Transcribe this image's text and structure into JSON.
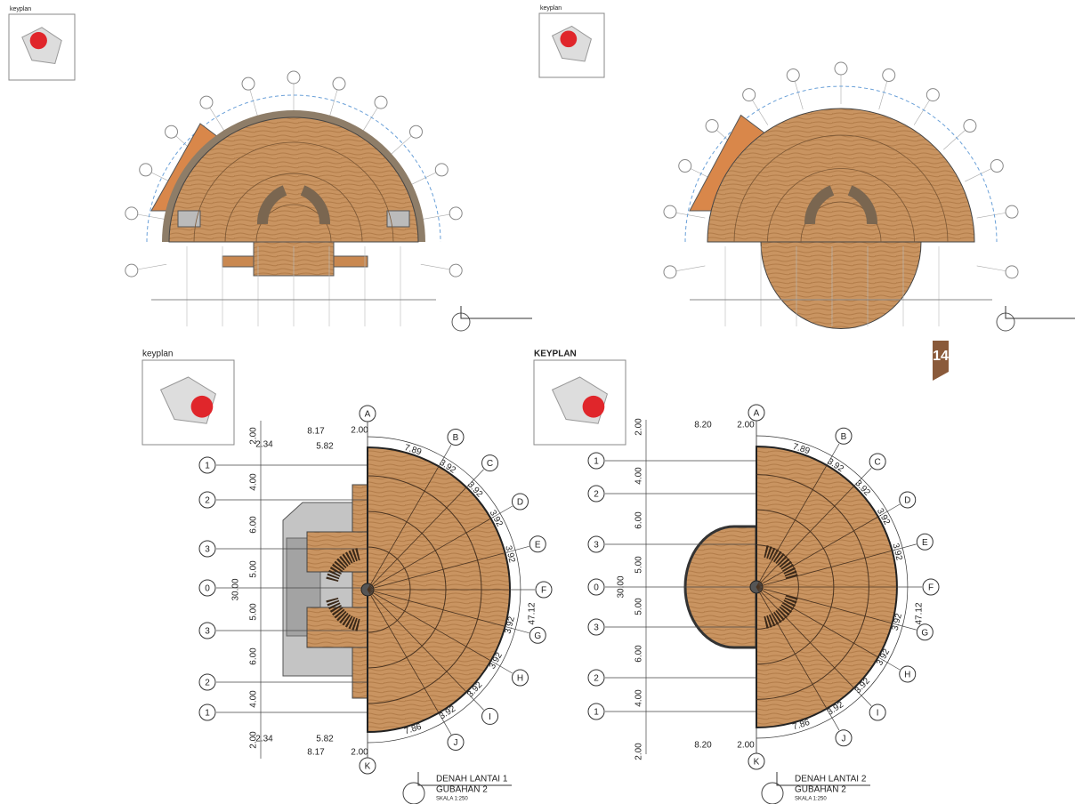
{
  "page_number": "14",
  "panels": [
    {
      "keyplan_label": "keyplan"
    },
    {
      "keyplan_label": "keyplan"
    },
    {
      "keyplan_label": "keyplan",
      "title": "DENAH LANTAI 1",
      "subtitle": "GUBAHAN 2",
      "scale": "SKALA 1:250",
      "columns": [
        "A",
        "B",
        "C",
        "D",
        "E",
        "F",
        "G",
        "H",
        "I",
        "J",
        "K"
      ],
      "rows": [
        "1",
        "2",
        "3",
        "0",
        "3",
        "2",
        "1"
      ],
      "dims": {
        "top": [
          "8.17",
          "2.34",
          "5.82",
          "2.00"
        ],
        "left": [
          "2.00",
          "4.00",
          "6.00",
          "5.00",
          "5.00",
          "6.00",
          "4.00",
          "2.00"
        ],
        "overall": "30.00",
        "arc": [
          "7.89",
          "3.92",
          "3.92",
          "3.92",
          "3.92",
          "3.92",
          "3.92",
          "3.92",
          "3.92",
          "7.86"
        ],
        "right": "47.12",
        "bottom": [
          "2.34",
          "5.82",
          "8.17",
          "2.00"
        ]
      }
    },
    {
      "keyplan_label": "KEYPLAN",
      "title": "DENAH LANTAI 2",
      "subtitle": "GUBAHAN 2",
      "scale": "SKALA 1:250",
      "columns": [
        "A",
        "B",
        "C",
        "D",
        "E",
        "F",
        "G",
        "H",
        "I",
        "J",
        "K"
      ],
      "rows": [
        "1",
        "2",
        "3",
        "0",
        "3",
        "2",
        "1"
      ],
      "dims": {
        "top": [
          "8.20",
          "2.00"
        ],
        "left": [
          "2.00",
          "4.00",
          "6.00",
          "5.00",
          "5.00",
          "6.00",
          "4.00",
          "2.00"
        ],
        "overall": "30.00",
        "arc": [
          "7.89",
          "3.92",
          "3.92",
          "3.92",
          "3.92",
          "3.92",
          "3.92",
          "3.92",
          "3.92",
          "7.86"
        ],
        "right": "47.12",
        "bottom": [
          "8.20",
          "2.00"
        ]
      }
    }
  ]
}
